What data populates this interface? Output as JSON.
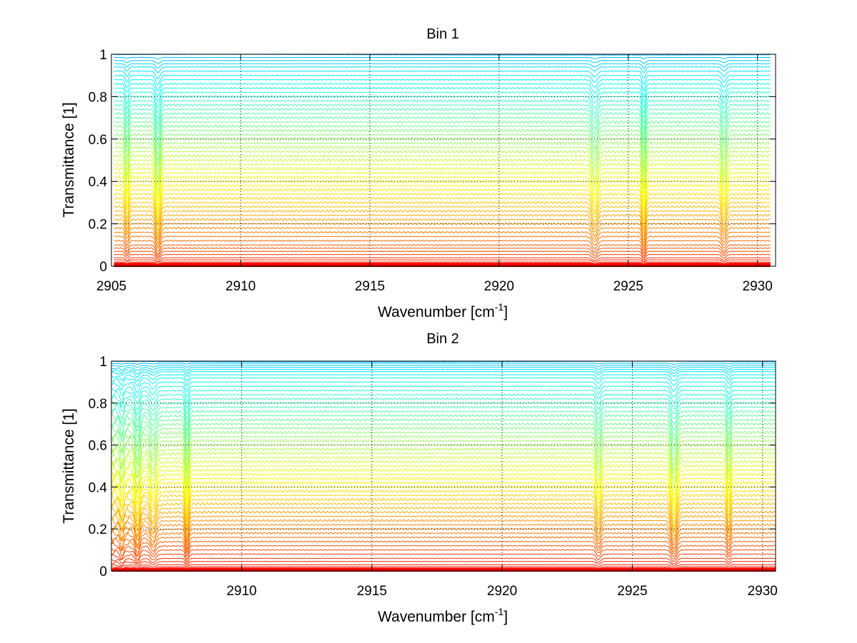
{
  "chart_data": [
    {
      "type": "line",
      "title": "Bin 1",
      "xlabel": "Wavenumber [cm",
      "xlabel_sup": "-1",
      "xlabel_end": "]",
      "ylabel": "Transmittance [1]",
      "xlim": [
        2905,
        2930.7
      ],
      "ylim": [
        0,
        1
      ],
      "xticks": [
        2905,
        2910,
        2915,
        2920,
        2925,
        2930
      ],
      "xtick_labels": [
        "2905",
        "2910",
        "2915",
        "2920",
        "2925",
        "2930"
      ],
      "yticks": [
        0,
        0.2,
        0.4,
        0.6,
        0.8,
        1
      ],
      "ytick_labels": [
        "0",
        "0.2",
        "0.4",
        "0.6",
        "0.8",
        "1"
      ],
      "grid": true,
      "series_count": 60,
      "colormap": "jet",
      "absorption_lines": [
        2905.6,
        2906.8,
        2923.7,
        2925.6,
        2928.7
      ],
      "data_x_range": [
        2905.1,
        2930.5
      ],
      "levels": [
        1.0,
        0.985,
        0.97,
        0.955,
        0.94,
        0.92,
        0.9,
        0.88,
        0.86,
        0.84,
        0.82,
        0.8,
        0.78,
        0.76,
        0.74,
        0.72,
        0.7,
        0.68,
        0.66,
        0.64,
        0.62,
        0.6,
        0.58,
        0.56,
        0.54,
        0.52,
        0.5,
        0.48,
        0.46,
        0.44,
        0.42,
        0.4,
        0.38,
        0.36,
        0.34,
        0.32,
        0.3,
        0.28,
        0.26,
        0.24,
        0.22,
        0.2,
        0.18,
        0.16,
        0.14,
        0.12,
        0.1,
        0.085,
        0.07,
        0.055,
        0.04,
        0.03,
        0.02,
        0.015,
        0.01,
        0.006,
        0.004,
        0.002,
        0.001,
        0.0
      ]
    },
    {
      "type": "line",
      "title": "Bin 2",
      "xlabel": "Wavenumber [cm",
      "xlabel_sup": "-1",
      "xlabel_end": "]",
      "ylabel": "Transmittance [1]",
      "xlim": [
        2905,
        2930.5
      ],
      "ylim": [
        0,
        1
      ],
      "xticks": [
        2910,
        2915,
        2920,
        2925,
        2930
      ],
      "xtick_labels": [
        "2910",
        "2915",
        "2920",
        "2925",
        "2930"
      ],
      "yticks": [
        0,
        0.2,
        0.4,
        0.6,
        0.8,
        1
      ],
      "ytick_labels": [
        "0",
        "0.2",
        "0.4",
        "0.6",
        "0.8",
        "1"
      ],
      "grid": true,
      "series_count": 60,
      "colormap": "jet",
      "absorption_lines": [
        2905.4,
        2906.0,
        2906.6,
        2907.9,
        2923.7,
        2926.6,
        2928.7
      ],
      "data_x_range": [
        2905.0,
        2930.5
      ],
      "levels": [
        1.0,
        0.99,
        0.98,
        0.97,
        0.96,
        0.95,
        0.935,
        0.92,
        0.9,
        0.88,
        0.86,
        0.84,
        0.82,
        0.8,
        0.78,
        0.76,
        0.74,
        0.72,
        0.7,
        0.68,
        0.66,
        0.64,
        0.62,
        0.6,
        0.58,
        0.56,
        0.54,
        0.52,
        0.5,
        0.48,
        0.46,
        0.44,
        0.42,
        0.4,
        0.38,
        0.36,
        0.34,
        0.32,
        0.3,
        0.28,
        0.26,
        0.24,
        0.22,
        0.2,
        0.18,
        0.16,
        0.14,
        0.12,
        0.1,
        0.08,
        0.06,
        0.045,
        0.03,
        0.02,
        0.012,
        0.006,
        0.003,
        0.001,
        0.0005,
        0.0
      ]
    }
  ]
}
